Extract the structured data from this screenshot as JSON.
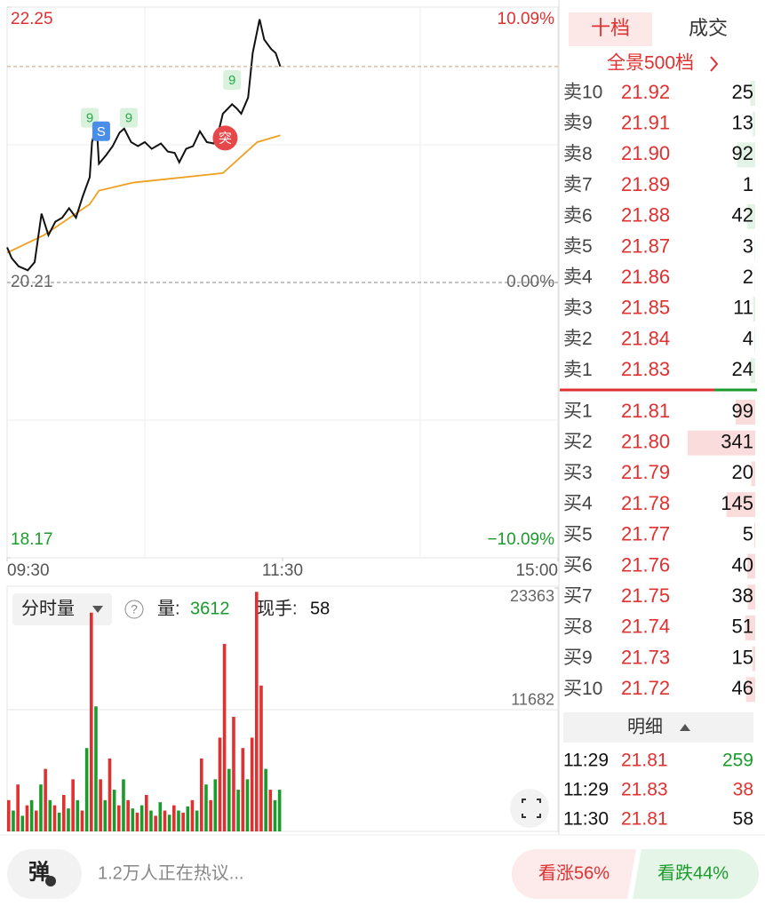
{
  "price_chart": {
    "type": "line",
    "ylim": [
      18.17,
      22.25
    ],
    "yticks": [
      22.25,
      20.21,
      18.17
    ],
    "pct_ticks": [
      "10.09%",
      "0.00%",
      "−10.09%"
    ],
    "xlim": [
      0,
      240
    ],
    "xticks": [
      {
        "value": 0,
        "label": "09:30"
      },
      {
        "value": 120,
        "label": "11:30"
      },
      {
        "value": 240,
        "label": "15:00"
      }
    ],
    "price": {
      "color": "#111111",
      "x": [
        0,
        2,
        5,
        9,
        12,
        15,
        18,
        21,
        24,
        27,
        30,
        33,
        36,
        37,
        39,
        40,
        43,
        46,
        49,
        51,
        54,
        57,
        60,
        63,
        67,
        70,
        73,
        75,
        78,
        81,
        84,
        87,
        90,
        92,
        94,
        98,
        100,
        102,
        105,
        107,
        110,
        112,
        115,
        117,
        119
      ],
      "values": [
        20.47,
        20.39,
        20.33,
        20.3,
        20.36,
        20.72,
        20.56,
        20.66,
        20.69,
        20.76,
        20.69,
        20.85,
        20.99,
        21.25,
        21.38,
        21.09,
        21.15,
        21.22,
        21.32,
        21.35,
        21.25,
        21.22,
        21.25,
        21.2,
        21.24,
        21.18,
        21.17,
        21.1,
        21.2,
        21.22,
        21.33,
        21.25,
        21.24,
        21.32,
        21.46,
        21.53,
        21.5,
        21.46,
        21.58,
        21.91,
        22.16,
        22.01,
        21.94,
        21.91,
        21.81
      ]
    },
    "average": {
      "color": "#f0a020",
      "x": [
        0,
        16,
        36,
        40,
        55,
        94,
        109,
        119
      ],
      "values": [
        20.43,
        20.56,
        20.79,
        20.89,
        20.95,
        21.02,
        21.25,
        21.3
      ]
    },
    "annotations": [
      {
        "text": "9",
        "x": 36,
        "y": 21.43,
        "color": "#2aa84a"
      },
      {
        "text": "9",
        "x": 53,
        "y": 21.43,
        "color": "#2aa84a"
      },
      {
        "text": "9",
        "x": 98,
        "y": 21.71,
        "color": "#2aa84a"
      },
      {
        "text": "S",
        "x": 41,
        "y": 21.33,
        "color": "#4a8ee8"
      },
      {
        "text": "突",
        "x": 95,
        "y": 21.28,
        "color": "#e8474a"
      }
    ]
  },
  "volume_chart": {
    "type": "bar",
    "ylim": [
      0,
      23363
    ],
    "yticks": [
      23363,
      11682
    ],
    "title": "分时量",
    "help": "?",
    "vol_label": "量:",
    "vol": 3612,
    "hand_label": "现手:",
    "hand": 58,
    "x": [
      0,
      2,
      4,
      6,
      8,
      10,
      12,
      14,
      16,
      18,
      20,
      22,
      24,
      26,
      28,
      30,
      32,
      34,
      36,
      38,
      40,
      42,
      44,
      46,
      48,
      50,
      52,
      54,
      56,
      58,
      60,
      62,
      64,
      66,
      68,
      70,
      72,
      74,
      76,
      78,
      80,
      82,
      84,
      86,
      88,
      90,
      92,
      94,
      96,
      98,
      100,
      102,
      104,
      106,
      108,
      110,
      112,
      114,
      116,
      118
    ],
    "values": [
      3000,
      2000,
      4500,
      1500,
      2500,
      3000,
      2000,
      4500,
      6000,
      3000,
      2500,
      1800,
      3500,
      2200,
      5000,
      3000,
      2000,
      8000,
      21000,
      12000,
      5000,
      3000,
      7000,
      4000,
      2500,
      5000,
      3000,
      2200,
      1800,
      2500,
      3500,
      2000,
      1500,
      2800,
      2000,
      1600,
      2500,
      2000,
      1800,
      2400,
      3000,
      2000,
      7000,
      4500,
      3000,
      5000,
      9000,
      18000,
      6000,
      11000,
      4000,
      8000,
      5000,
      9000,
      23000,
      14000,
      6000,
      4000,
      3000,
      4000
    ],
    "colors": [
      "r",
      "g",
      "r",
      "g",
      "r",
      "g",
      "r",
      "g",
      "r",
      "g",
      "r",
      "g",
      "r",
      "g",
      "r",
      "g",
      "r",
      "g",
      "r",
      "g",
      "r",
      "g",
      "r",
      "g",
      "r",
      "g",
      "r",
      "g",
      "r",
      "g",
      "r",
      "g",
      "r",
      "g",
      "r",
      "g",
      "r",
      "g",
      "r",
      "g",
      "r",
      "g",
      "r",
      "g",
      "r",
      "g",
      "r",
      "r",
      "g",
      "r",
      "g",
      "r",
      "g",
      "r",
      "r",
      "r",
      "g",
      "r",
      "g",
      "g"
    ]
  },
  "book": {
    "tabs": [
      "十档",
      "成交"
    ],
    "panorama": "全景500档",
    "asks": [
      {
        "label": "卖10",
        "price": "21.92",
        "volume": 25
      },
      {
        "label": "卖9",
        "price": "21.91",
        "volume": 13
      },
      {
        "label": "卖8",
        "price": "21.90",
        "volume": 92
      },
      {
        "label": "卖7",
        "price": "21.89",
        "volume": 1
      },
      {
        "label": "卖6",
        "price": "21.88",
        "volume": 42
      },
      {
        "label": "卖5",
        "price": "21.87",
        "volume": 3
      },
      {
        "label": "卖4",
        "price": "21.86",
        "volume": 2
      },
      {
        "label": "卖3",
        "price": "21.85",
        "volume": 11
      },
      {
        "label": "卖2",
        "price": "21.84",
        "volume": 4
      },
      {
        "label": "卖1",
        "price": "21.83",
        "volume": 24
      }
    ],
    "bids": [
      {
        "label": "买1",
        "price": "21.81",
        "volume": 99
      },
      {
        "label": "买2",
        "price": "21.80",
        "volume": 341
      },
      {
        "label": "买3",
        "price": "21.79",
        "volume": 20
      },
      {
        "label": "买4",
        "price": "21.78",
        "volume": 145
      },
      {
        "label": "买5",
        "price": "21.77",
        "volume": 5
      },
      {
        "label": "买6",
        "price": "21.76",
        "volume": 40
      },
      {
        "label": "买7",
        "price": "21.75",
        "volume": 38
      },
      {
        "label": "买8",
        "price": "21.74",
        "volume": 51
      },
      {
        "label": "买9",
        "price": "21.73",
        "volume": 15
      },
      {
        "label": "买10",
        "price": "21.72",
        "volume": 46
      }
    ],
    "detail_title": "明细",
    "detail": [
      {
        "time": "11:29",
        "price": "21.81",
        "volume": "259",
        "color": "#1a9b2b"
      },
      {
        "time": "11:29",
        "price": "21.83",
        "volume": "38",
        "color": "#e0302f"
      },
      {
        "time": "11:30",
        "price": "21.81",
        "volume": "58",
        "color": "#111111"
      }
    ]
  },
  "footer": {
    "danmu": "弹",
    "comments": "1.2万人正在热议...",
    "bull": "看涨56%",
    "bear": "看跌44%"
  }
}
